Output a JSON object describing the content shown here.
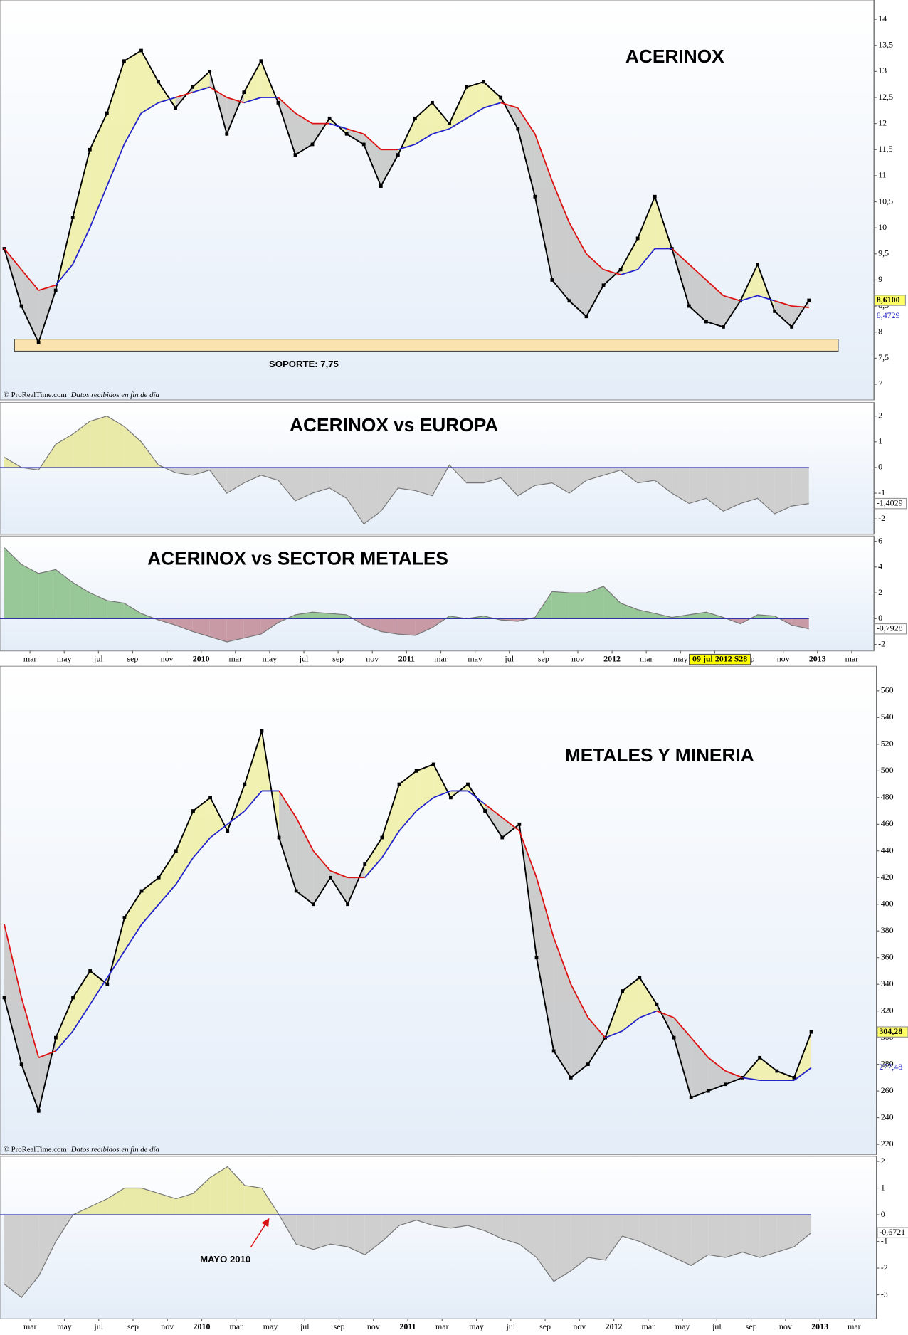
{
  "chart_data": [
    {
      "type": "price",
      "title": "ACERINOX",
      "source": "© ProRealTime.com",
      "source_note": "Datos recibidos en fin de día",
      "x": [
        0.5,
        1.5,
        2.5,
        3.5,
        4.5,
        5.5,
        6.5,
        7.5,
        8.5,
        9.5,
        10.5,
        11.5,
        12.5,
        13.5,
        14.5,
        15.5,
        16.5,
        17.5,
        18.5,
        19.5,
        20.5,
        21.5,
        22.5,
        23.5,
        24.5,
        25.5,
        26.5,
        27.5,
        28.5,
        29.5,
        30.5,
        31.5,
        32.5,
        33.5,
        34.5,
        35.5,
        36.5,
        37.5,
        38.5,
        39.5,
        40.5,
        41.5,
        42.5,
        43.5,
        44.5,
        45.5,
        46.5,
        47.5
      ],
      "values": [
        9.6,
        8.5,
        7.8,
        8.8,
        10.2,
        11.5,
        12.2,
        13.2,
        13.4,
        12.8,
        12.3,
        12.7,
        13.0,
        11.8,
        12.6,
        13.2,
        12.4,
        11.4,
        11.6,
        12.1,
        11.8,
        11.6,
        10.8,
        11.4,
        12.1,
        12.4,
        12.0,
        12.7,
        12.8,
        12.5,
        11.9,
        10.6,
        9.0,
        8.6,
        8.3,
        8.9,
        9.2,
        9.8,
        10.6,
        9.6,
        8.5,
        8.2,
        8.1,
        8.6,
        9.3,
        8.4,
        8.1,
        8.61
      ],
      "value_label": "8,6100",
      "ma": [
        9.6,
        9.2,
        8.8,
        8.9,
        9.3,
        10.0,
        10.8,
        11.6,
        12.2,
        12.4,
        12.5,
        12.6,
        12.7,
        12.5,
        12.4,
        12.5,
        12.5,
        12.2,
        12.0,
        12.0,
        11.9,
        11.8,
        11.5,
        11.5,
        11.6,
        11.8,
        11.9,
        12.1,
        12.3,
        12.4,
        12.3,
        11.8,
        10.9,
        10.1,
        9.5,
        9.2,
        9.1,
        9.2,
        9.6,
        9.6,
        9.3,
        9.0,
        8.7,
        8.6,
        8.7,
        8.6,
        8.5,
        8.4729
      ],
      "ma_label": "8,4729",
      "xlim": [
        0.25,
        51.3
      ],
      "ylim": [
        6.7,
        14.37
      ],
      "yticks": [
        7,
        {
          "value": 7.5,
          "label": "7,5"
        },
        8,
        {
          "value": 8.5,
          "label": "8,5"
        },
        9,
        {
          "value": 9.5,
          "label": "9,5"
        },
        10,
        {
          "value": 10.5,
          "label": "10,5"
        },
        11,
        {
          "value": 11.5,
          "label": "11,5"
        },
        12,
        {
          "value": 12.5,
          "label": "12,5"
        },
        13,
        {
          "value": 13.5,
          "label": "13,5"
        },
        14
      ],
      "support": {
        "value": 7.75,
        "label": "SOPORTE: 7,75"
      },
      "price_color": "#000000",
      "up_fill": "#f0f0a8",
      "down_fill": "#c8c8c8",
      "ma_up_color": "#2222cc",
      "ma_down_color": "#dd1111"
    },
    {
      "type": "oscillator",
      "title": "ACERINOX vs EUROPA",
      "x": [
        0.5,
        1.5,
        2.5,
        3.5,
        4.5,
        5.5,
        6.5,
        7.5,
        8.5,
        9.5,
        10.5,
        11.5,
        12.5,
        13.5,
        14.5,
        15.5,
        16.5,
        17.5,
        18.5,
        19.5,
        20.5,
        21.5,
        22.5,
        23.5,
        24.5,
        25.5,
        26.5,
        27.5,
        28.5,
        29.5,
        30.5,
        31.5,
        32.5,
        33.5,
        34.5,
        35.5,
        36.5,
        37.5,
        38.5,
        39.5,
        40.5,
        41.5,
        42.5,
        43.5,
        44.5,
        45.5,
        46.5,
        47.5
      ],
      "values": [
        0.4,
        0.0,
        -0.1,
        0.9,
        1.3,
        1.8,
        2.0,
        1.6,
        1.0,
        0.1,
        -0.2,
        -0.3,
        -0.1,
        -1.0,
        -0.6,
        -0.3,
        -0.5,
        -1.3,
        -1.0,
        -0.8,
        -1.2,
        -2.2,
        -1.7,
        -0.8,
        -0.9,
        -1.1,
        0.1,
        -0.6,
        -0.6,
        -0.4,
        -1.1,
        -0.7,
        -0.6,
        -1.0,
        -0.5,
        -0.3,
        -0.1,
        -0.6,
        -0.5,
        -1.0,
        -1.4,
        -1.2,
        -1.7,
        -1.4,
        -1.2,
        -1.8,
        -1.5,
        -1.4029
      ],
      "value_label": "-1,4029",
      "xlim": [
        0.25,
        51.3
      ],
      "ylim": [
        -2.6,
        2.53
      ],
      "yticks": [
        -2,
        -1,
        0,
        1,
        2
      ],
      "pos_color": "#eaeaa8",
      "neg_color": "#cfcfcf"
    },
    {
      "type": "oscillator",
      "title": "ACERINOX vs SECTOR METALES",
      "x": [
        0.5,
        1.5,
        2.5,
        3.5,
        4.5,
        5.5,
        6.5,
        7.5,
        8.5,
        9.5,
        10.5,
        11.5,
        12.5,
        13.5,
        14.5,
        15.5,
        16.5,
        17.5,
        18.5,
        19.5,
        20.5,
        21.5,
        22.5,
        23.5,
        24.5,
        25.5,
        26.5,
        27.5,
        28.5,
        29.5,
        30.5,
        31.5,
        32.5,
        33.5,
        34.5,
        35.5,
        36.5,
        37.5,
        38.5,
        39.5,
        40.5,
        41.5,
        42.5,
        43.5,
        44.5,
        45.5,
        46.5,
        47.5
      ],
      "values": [
        5.5,
        4.2,
        3.5,
        3.8,
        2.8,
        2.0,
        1.4,
        1.2,
        0.4,
        -0.1,
        -0.5,
        -1.0,
        -1.4,
        -1.8,
        -1.5,
        -1.2,
        -0.3,
        0.3,
        0.5,
        0.4,
        0.3,
        -0.5,
        -1.0,
        -1.2,
        -1.3,
        -0.7,
        0.2,
        0.0,
        0.2,
        -0.1,
        -0.2,
        0.1,
        2.1,
        2.0,
        2.0,
        2.5,
        1.2,
        0.7,
        0.4,
        0.1,
        0.3,
        0.5,
        0.1,
        -0.4,
        0.3,
        0.2,
        -0.5,
        -0.7928
      ],
      "value_label": "-0,7928",
      "xlim": [
        0.25,
        51.3
      ],
      "ylim": [
        -2.5,
        6.4
      ],
      "yticks": [
        -2,
        0,
        2,
        4,
        6
      ],
      "xticks": [
        {
          "value": 2,
          "label": "mar"
        },
        {
          "value": 4,
          "label": "may"
        },
        {
          "value": 6,
          "label": "jul"
        },
        {
          "value": 8,
          "label": "sep"
        },
        {
          "value": 10,
          "label": "nov"
        },
        {
          "value": 12,
          "label": "2010"
        },
        {
          "value": 14,
          "label": "mar"
        },
        {
          "value": 16,
          "label": "may"
        },
        {
          "value": 18,
          "label": "jul"
        },
        {
          "value": 20,
          "label": "sep"
        },
        {
          "value": 22,
          "label": "nov"
        },
        {
          "value": 24,
          "label": "2011"
        },
        {
          "value": 26,
          "label": "mar"
        },
        {
          "value": 28,
          "label": "may"
        },
        {
          "value": 30,
          "label": "jul"
        },
        {
          "value": 32,
          "label": "sep"
        },
        {
          "value": 34,
          "label": "nov"
        },
        {
          "value": 36,
          "label": "2012"
        },
        {
          "value": 38,
          "label": "mar"
        },
        {
          "value": 40,
          "label": "may"
        },
        {
          "value": 42,
          "label": "jul"
        },
        {
          "value": 44,
          "label": "sep"
        },
        {
          "value": 46,
          "label": "nov"
        },
        {
          "value": 48,
          "label": "2013"
        },
        {
          "value": 50,
          "label": "mar"
        }
      ],
      "cursor": {
        "x": 42.3,
        "label": "09 jul 2012 S28"
      },
      "pos_color": "#98c898",
      "neg_color": "#c89aa6"
    },
    {
      "type": "price",
      "title": "METALES Y MINERIA",
      "source": "© ProRealTime.com",
      "source_note": "Datos recibidos en fin de día",
      "x": [
        0.5,
        1.5,
        2.5,
        3.5,
        4.5,
        5.5,
        6.5,
        7.5,
        8.5,
        9.5,
        10.5,
        11.5,
        12.5,
        13.5,
        14.5,
        15.5,
        16.5,
        17.5,
        18.5,
        19.5,
        20.5,
        21.5,
        22.5,
        23.5,
        24.5,
        25.5,
        26.5,
        27.5,
        28.5,
        29.5,
        30.5,
        31.5,
        32.5,
        33.5,
        34.5,
        35.5,
        36.5,
        37.5,
        38.5,
        39.5,
        40.5,
        41.5,
        42.5,
        43.5,
        44.5,
        45.5,
        46.5,
        47.5
      ],
      "values": [
        330,
        280,
        245,
        300,
        330,
        350,
        340,
        390,
        410,
        420,
        440,
        470,
        480,
        455,
        490,
        530,
        450,
        410,
        400,
        420,
        400,
        430,
        450,
        490,
        500,
        505,
        480,
        490,
        470,
        450,
        460,
        360,
        290,
        270,
        280,
        300,
        335,
        345,
        325,
        300,
        255,
        260,
        265,
        270,
        285,
        275,
        270,
        304.28
      ],
      "value_label": "304,28",
      "ma": [
        385,
        330,
        285,
        290,
        305,
        325,
        345,
        365,
        385,
        400,
        415,
        435,
        450,
        460,
        470,
        485,
        485,
        465,
        440,
        425,
        420,
        420,
        435,
        455,
        470,
        480,
        485,
        485,
        475,
        465,
        455,
        420,
        375,
        340,
        315,
        300,
        305,
        315,
        320,
        315,
        300,
        285,
        275,
        270,
        268,
        268,
        268,
        277.48
      ],
      "ma_label": "277,48",
      "xlim": [
        0.25,
        51.3
      ],
      "ylim": [
        212.3,
        578.5
      ],
      "yticks": [
        220,
        240,
        260,
        280,
        300,
        320,
        340,
        360,
        380,
        400,
        420,
        440,
        460,
        480,
        500,
        520,
        540,
        560
      ],
      "price_color": "#000000",
      "up_fill": "#f0f0a8",
      "down_fill": "#c8c8c8",
      "ma_up_color": "#2222cc",
      "ma_down_color": "#dd1111"
    },
    {
      "type": "oscillator",
      "x": [
        0.5,
        1.5,
        2.5,
        3.5,
        4.5,
        5.5,
        6.5,
        7.5,
        8.5,
        9.5,
        10.5,
        11.5,
        12.5,
        13.5,
        14.5,
        15.5,
        16.5,
        17.5,
        18.5,
        19.5,
        20.5,
        21.5,
        22.5,
        23.5,
        24.5,
        25.5,
        26.5,
        27.5,
        28.5,
        29.5,
        30.5,
        31.5,
        32.5,
        33.5,
        34.5,
        35.5,
        36.5,
        37.5,
        38.5,
        39.5,
        40.5,
        41.5,
        42.5,
        43.5,
        44.5,
        45.5,
        46.5,
        47.5
      ],
      "values": [
        -2.6,
        -3.1,
        -2.3,
        -1.0,
        0.0,
        0.3,
        0.6,
        1.0,
        1.0,
        0.8,
        0.6,
        0.8,
        1.4,
        1.8,
        1.1,
        1.0,
        0.0,
        -1.1,
        -1.3,
        -1.1,
        -1.2,
        -1.5,
        -1.0,
        -0.4,
        -0.2,
        -0.4,
        -0.5,
        -0.4,
        -0.6,
        -0.9,
        -1.1,
        -1.6,
        -2.5,
        -2.1,
        -1.6,
        -1.7,
        -0.8,
        -1.0,
        -1.3,
        -1.6,
        -1.9,
        -1.5,
        -1.6,
        -1.4,
        -1.6,
        -1.4,
        -1.2,
        -0.6721
      ],
      "value_label": "-0,6721",
      "xlim": [
        0.25,
        51.3
      ],
      "ylim": [
        -3.9,
        2.19
      ],
      "yticks": [
        -3,
        -2,
        -1,
        0,
        1,
        2
      ],
      "xticks": [
        {
          "value": 2,
          "label": "mar"
        },
        {
          "value": 4,
          "label": "may"
        },
        {
          "value": 6,
          "label": "jul"
        },
        {
          "value": 8,
          "label": "sep"
        },
        {
          "value": 10,
          "label": "nov"
        },
        {
          "value": 12,
          "label": "2010"
        },
        {
          "value": 14,
          "label": "mar"
        },
        {
          "value": 16,
          "label": "may"
        },
        {
          "value": 18,
          "label": "jul"
        },
        {
          "value": 20,
          "label": "sep"
        },
        {
          "value": 22,
          "label": "nov"
        },
        {
          "value": 24,
          "label": "2011"
        },
        {
          "value": 26,
          "label": "mar"
        },
        {
          "value": 28,
          "label": "may"
        },
        {
          "value": 30,
          "label": "jul"
        },
        {
          "value": 32,
          "label": "sep"
        },
        {
          "value": 34,
          "label": "nov"
        },
        {
          "value": 36,
          "label": "2012"
        },
        {
          "value": 38,
          "label": "mar"
        },
        {
          "value": 40,
          "label": "may"
        },
        {
          "value": 42,
          "label": "jul"
        },
        {
          "value": 44,
          "label": "sep"
        },
        {
          "value": 46,
          "label": "nov"
        },
        {
          "value": 48,
          "label": "2013"
        },
        {
          "value": 50,
          "label": "mar"
        }
      ],
      "annotation": {
        "x": 16,
        "y": 0,
        "label": "MAYO 2010"
      },
      "pos_color": "#eaeaa8",
      "neg_color": "#cfcfcf"
    }
  ]
}
